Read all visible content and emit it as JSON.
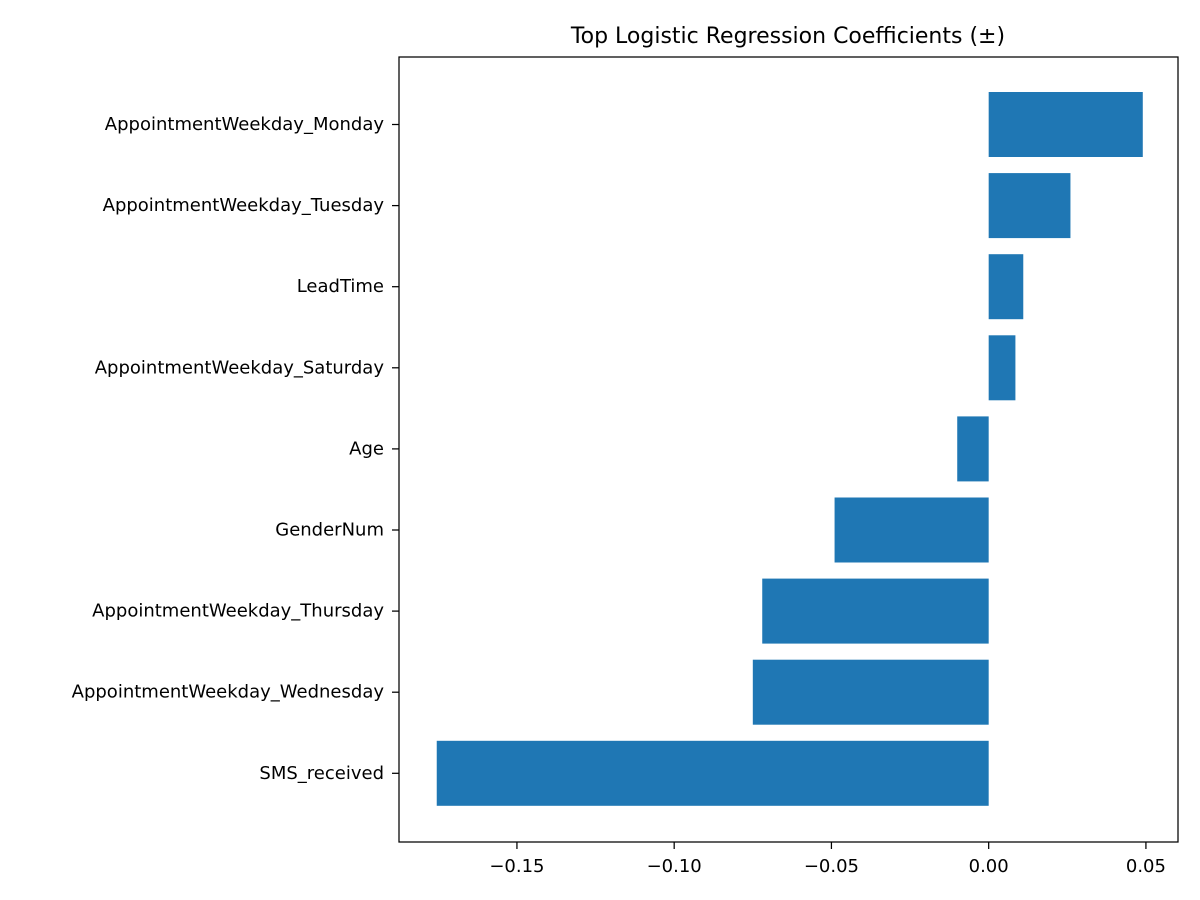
{
  "chart_data": {
    "type": "bar",
    "orientation": "horizontal",
    "title": "Top Logistic Regression Coefficients (±)",
    "xlabel": "",
    "ylabel": "",
    "categories": [
      "AppointmentWeekday_Monday",
      "AppointmentWeekday_Tuesday",
      "LeadTime",
      "AppointmentWeekday_Saturday",
      "Age",
      "GenderNum",
      "AppointmentWeekday_Thursday",
      "AppointmentWeekday_Wednesday",
      "SMS_received"
    ],
    "values": [
      0.049,
      0.026,
      0.011,
      0.0085,
      -0.01,
      -0.049,
      -0.072,
      -0.075,
      -0.1755
    ],
    "xlim": [
      -0.1875,
      0.0602
    ],
    "xticks": [
      -0.15,
      -0.1,
      -0.05,
      0.0,
      0.05
    ],
    "xtick_labels": [
      "−0.15",
      "−0.10",
      "−0.05",
      "0.00",
      "0.05"
    ],
    "grid": false,
    "legend": "none",
    "bar_color": "#1f77b4"
  }
}
